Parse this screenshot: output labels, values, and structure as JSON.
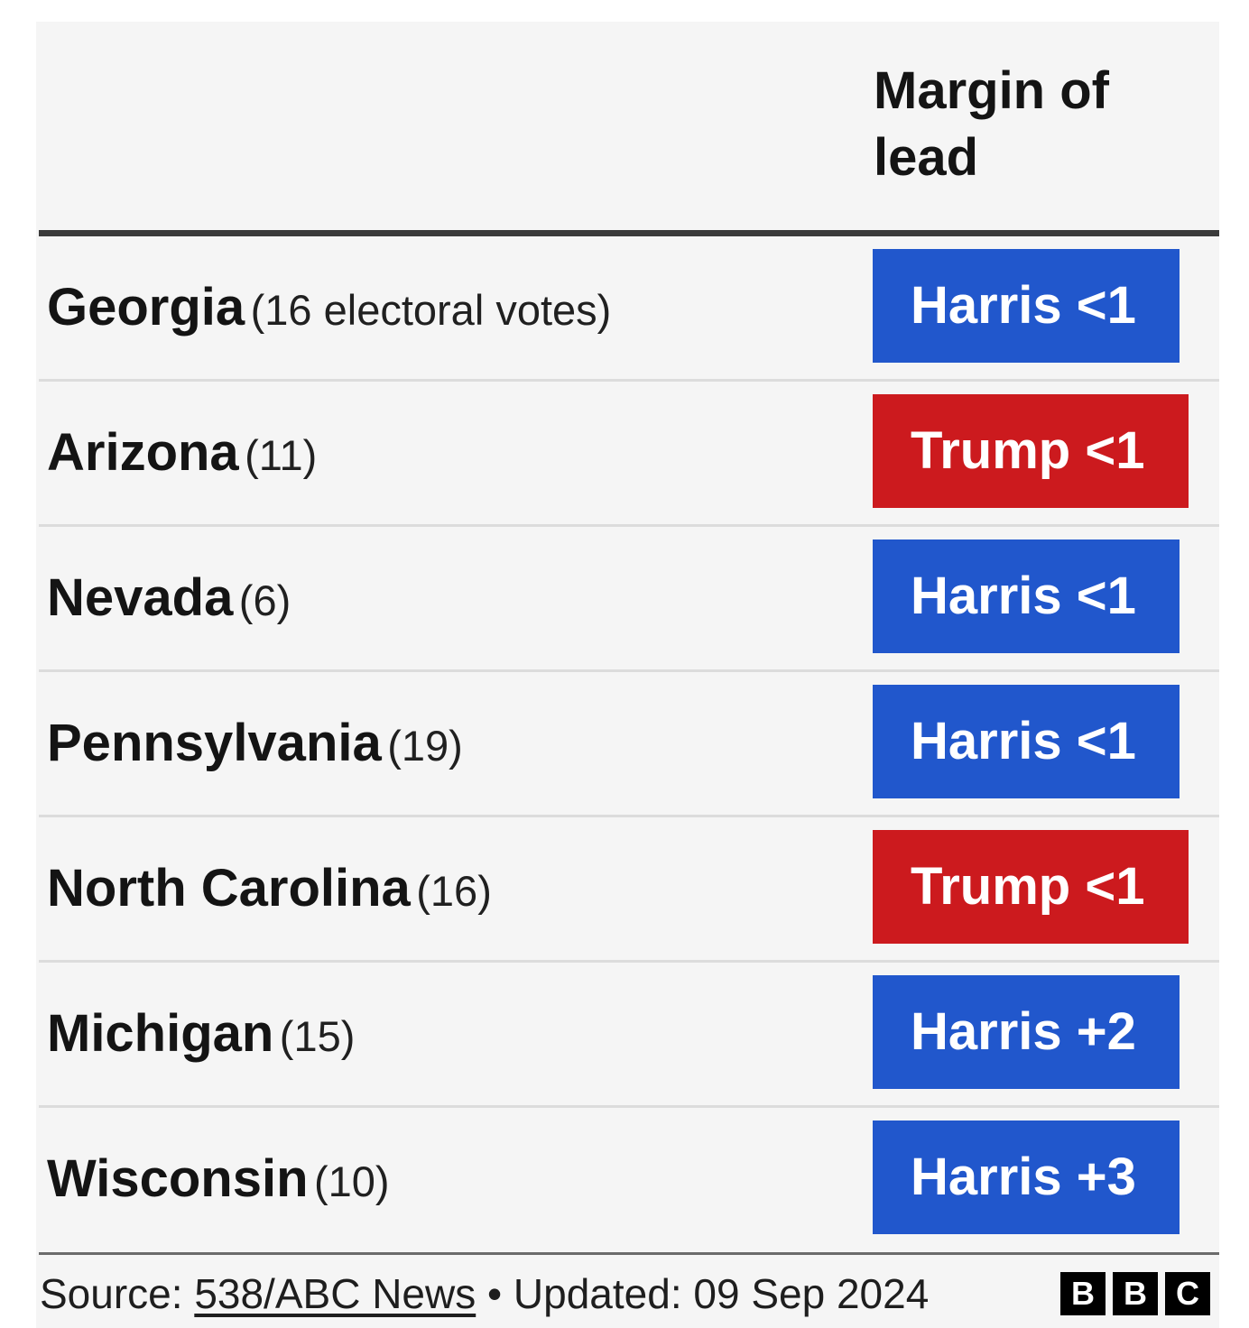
{
  "chart_data": {
    "type": "table",
    "header": {
      "state_column": "",
      "margin_column": "Margin of lead"
    },
    "rows": [
      {
        "state": "Georgia",
        "electoral_votes": "(16 electoral votes)",
        "leader": "Harris",
        "margin": "<1",
        "label": "Harris <1"
      },
      {
        "state": "Arizona",
        "electoral_votes": "(11)",
        "leader": "Trump",
        "margin": "<1",
        "label": "Trump <1"
      },
      {
        "state": "Nevada",
        "electoral_votes": "(6)",
        "leader": "Harris",
        "margin": "<1",
        "label": "Harris <1"
      },
      {
        "state": "Pennsylvania",
        "electoral_votes": "(19)",
        "leader": "Harris",
        "margin": "<1",
        "label": "Harris <1"
      },
      {
        "state": "North Carolina",
        "electoral_votes": "(16)",
        "leader": "Trump",
        "margin": "<1",
        "label": "Trump <1"
      },
      {
        "state": "Michigan",
        "electoral_votes": "(15)",
        "leader": "Harris",
        "margin": "+2",
        "label": "Harris +2"
      },
      {
        "state": "Wisconsin",
        "electoral_votes": "(10)",
        "leader": "Harris",
        "margin": "+3",
        "label": "Harris +3"
      }
    ],
    "colors": {
      "Harris": "#2157cc",
      "Trump": "#cc1a1e"
    }
  },
  "footer": {
    "source_prefix": "Source: ",
    "source_link": "538/ABC News",
    "updated": " • Updated: 09 Sep 2024"
  },
  "logo": {
    "letters": [
      "B",
      "B",
      "C"
    ]
  }
}
